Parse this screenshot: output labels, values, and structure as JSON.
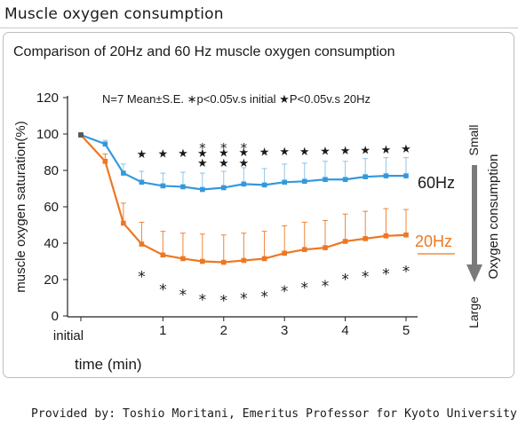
{
  "header": {
    "title": "Muscle oxygen consumption"
  },
  "footer": {
    "credit": "Provided by: Toshio Moritani, Emeritus Professor for Kyoto University"
  },
  "chart_data": {
    "type": "line",
    "title": "Comparison of 20Hz and 60 Hz muscle oxygen consumption",
    "note": "N=7 Mean±S.E.  ∗p<0.05v.s initial  ★P<0.05v.s 20Hz",
    "xlabel": "time (min)",
    "ylabel": "muscle oxygen saturation(%)",
    "ylim": [
      0,
      120
    ],
    "xlim": [
      -0.35,
      5
    ],
    "yticks": [
      0,
      20,
      40,
      60,
      80,
      100,
      120
    ],
    "xticks": [
      {
        "value": -0.35,
        "label": "initial"
      },
      {
        "value": 1,
        "label": "1"
      },
      {
        "value": 2,
        "label": "2"
      },
      {
        "value": 3,
        "label": "3"
      },
      {
        "value": 4,
        "label": "4"
      },
      {
        "value": 5,
        "label": "5"
      }
    ],
    "x": [
      -0.35,
      0.05,
      0.35,
      0.65,
      1.0,
      1.33,
      1.65,
      2.0,
      2.33,
      2.67,
      3.0,
      3.33,
      3.67,
      4.0,
      4.33,
      4.67,
      5.0
    ],
    "series": [
      {
        "name": "60Hz",
        "color": "#3399dd",
        "values": [
          99.5,
          94.5,
          78.5,
          73.5,
          71.5,
          71.0,
          69.5,
          70.5,
          72.5,
          72.0,
          73.5,
          74.0,
          75.0,
          75.0,
          76.5,
          77.0,
          77.0
        ],
        "errors": [
          0,
          2,
          5,
          6,
          7,
          8,
          9,
          9,
          9,
          9,
          10,
          10,
          10,
          10,
          10,
          10,
          10
        ]
      },
      {
        "name": "20Hz",
        "color": "#ee7722",
        "values": [
          99.5,
          85.0,
          51.0,
          39.5,
          33.5,
          31.5,
          30.0,
          29.5,
          30.5,
          31.5,
          34.5,
          36.5,
          37.5,
          41.0,
          42.5,
          44.0,
          44.5
        ],
        "errors": [
          0,
          4,
          11,
          12,
          13,
          14,
          15,
          15,
          15,
          15,
          15,
          15,
          15,
          15,
          15,
          15,
          14
        ]
      }
    ],
    "significance_initial": [
      0.65,
      1.0,
      1.33,
      1.65,
      2.0,
      2.33,
      2.67,
      3.0,
      3.33,
      3.67,
      4.0,
      4.33,
      4.67,
      5.0
    ],
    "significance_20hz_top": [
      0.65,
      1.0,
      1.33,
      1.65,
      2.0,
      2.33,
      2.67,
      3.0,
      3.33,
      3.67,
      4.0,
      4.33,
      4.67,
      5.0
    ],
    "significance_20hz_second": [
      1.65,
      2.0,
      2.33
    ],
    "significance_60hz_initial": [
      1.65,
      2.0,
      2.33
    ],
    "arrow_top_label": "Small",
    "arrow_bottom_label": "Large",
    "arrow_side_label": "Oxygen consumption"
  }
}
